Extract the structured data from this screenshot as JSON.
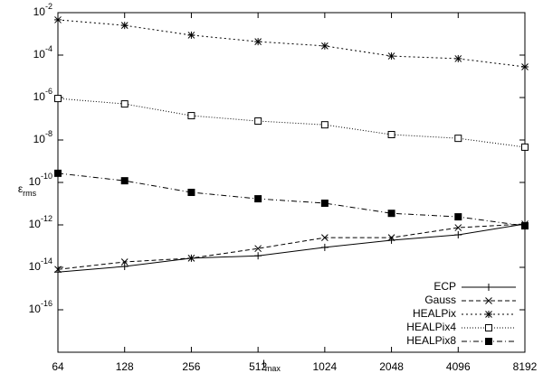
{
  "chart_data": {
    "type": "line",
    "x_label": "lmax",
    "y_label": "εrms",
    "x": [
      64,
      128,
      256,
      512,
      1024,
      2048,
      4096,
      8192
    ],
    "xlim": [
      64,
      8192
    ],
    "xticks": [
      64,
      128,
      256,
      512,
      1024,
      2048,
      4096,
      8192
    ],
    "x_log_base": 2,
    "ylim": [
      1e-18,
      0.01
    ],
    "y_log": true,
    "yticks": [
      {
        "value": 0.01,
        "label": "10-2"
      },
      {
        "value": 0.0001,
        "label": "10-4"
      },
      {
        "value": 1e-06,
        "label": "10-6"
      },
      {
        "value": 1e-08,
        "label": "10-8"
      },
      {
        "value": 1e-10,
        "label": "10-10"
      },
      {
        "value": 1e-12,
        "label": "10-12"
      },
      {
        "value": 1e-14,
        "label": "10-14"
      },
      {
        "value": 1e-16,
        "label": "10-16"
      }
    ],
    "legend": "lower right",
    "series": [
      {
        "name": "ECP",
        "color": "#000000",
        "marker": "plus",
        "dash": "none",
        "values": [
          6e-15,
          1.1e-14,
          2.7e-14,
          3.5e-14,
          8.7e-14,
          1.9e-13,
          3.4e-13,
          1.1e-12
        ]
      },
      {
        "name": "Gauss",
        "color": "#000000",
        "marker": "cross",
        "dash": "5,3",
        "values": [
          8e-15,
          1.8e-14,
          2.7e-14,
          7.7e-14,
          2.5e-13,
          2.5e-13,
          7.4e-13,
          1.1e-12
        ]
      },
      {
        "name": "HEALPix",
        "color": "#000000",
        "marker": "star",
        "dash": "2,3",
        "values": [
          0.0046,
          0.0025,
          0.00087,
          0.00043,
          0.00027,
          9e-05,
          6.8e-05,
          2.8e-05
        ]
      },
      {
        "name": "HEALPix4",
        "color": "#000000",
        "marker": "square-open",
        "dash": "1,2",
        "values": [
          9e-07,
          5e-07,
          1.4e-07,
          7.8e-08,
          5.2e-08,
          1.8e-08,
          1.2e-08,
          4.6e-09
        ]
      },
      {
        "name": "HEALPix8",
        "color": "#000000",
        "marker": "square-filled",
        "dash": "6,3,1,3",
        "values": [
          2.7e-10,
          1.2e-10,
          3.4e-11,
          1.7e-11,
          1.05e-11,
          3.5e-12,
          2.4e-12,
          9e-13
        ]
      }
    ]
  }
}
